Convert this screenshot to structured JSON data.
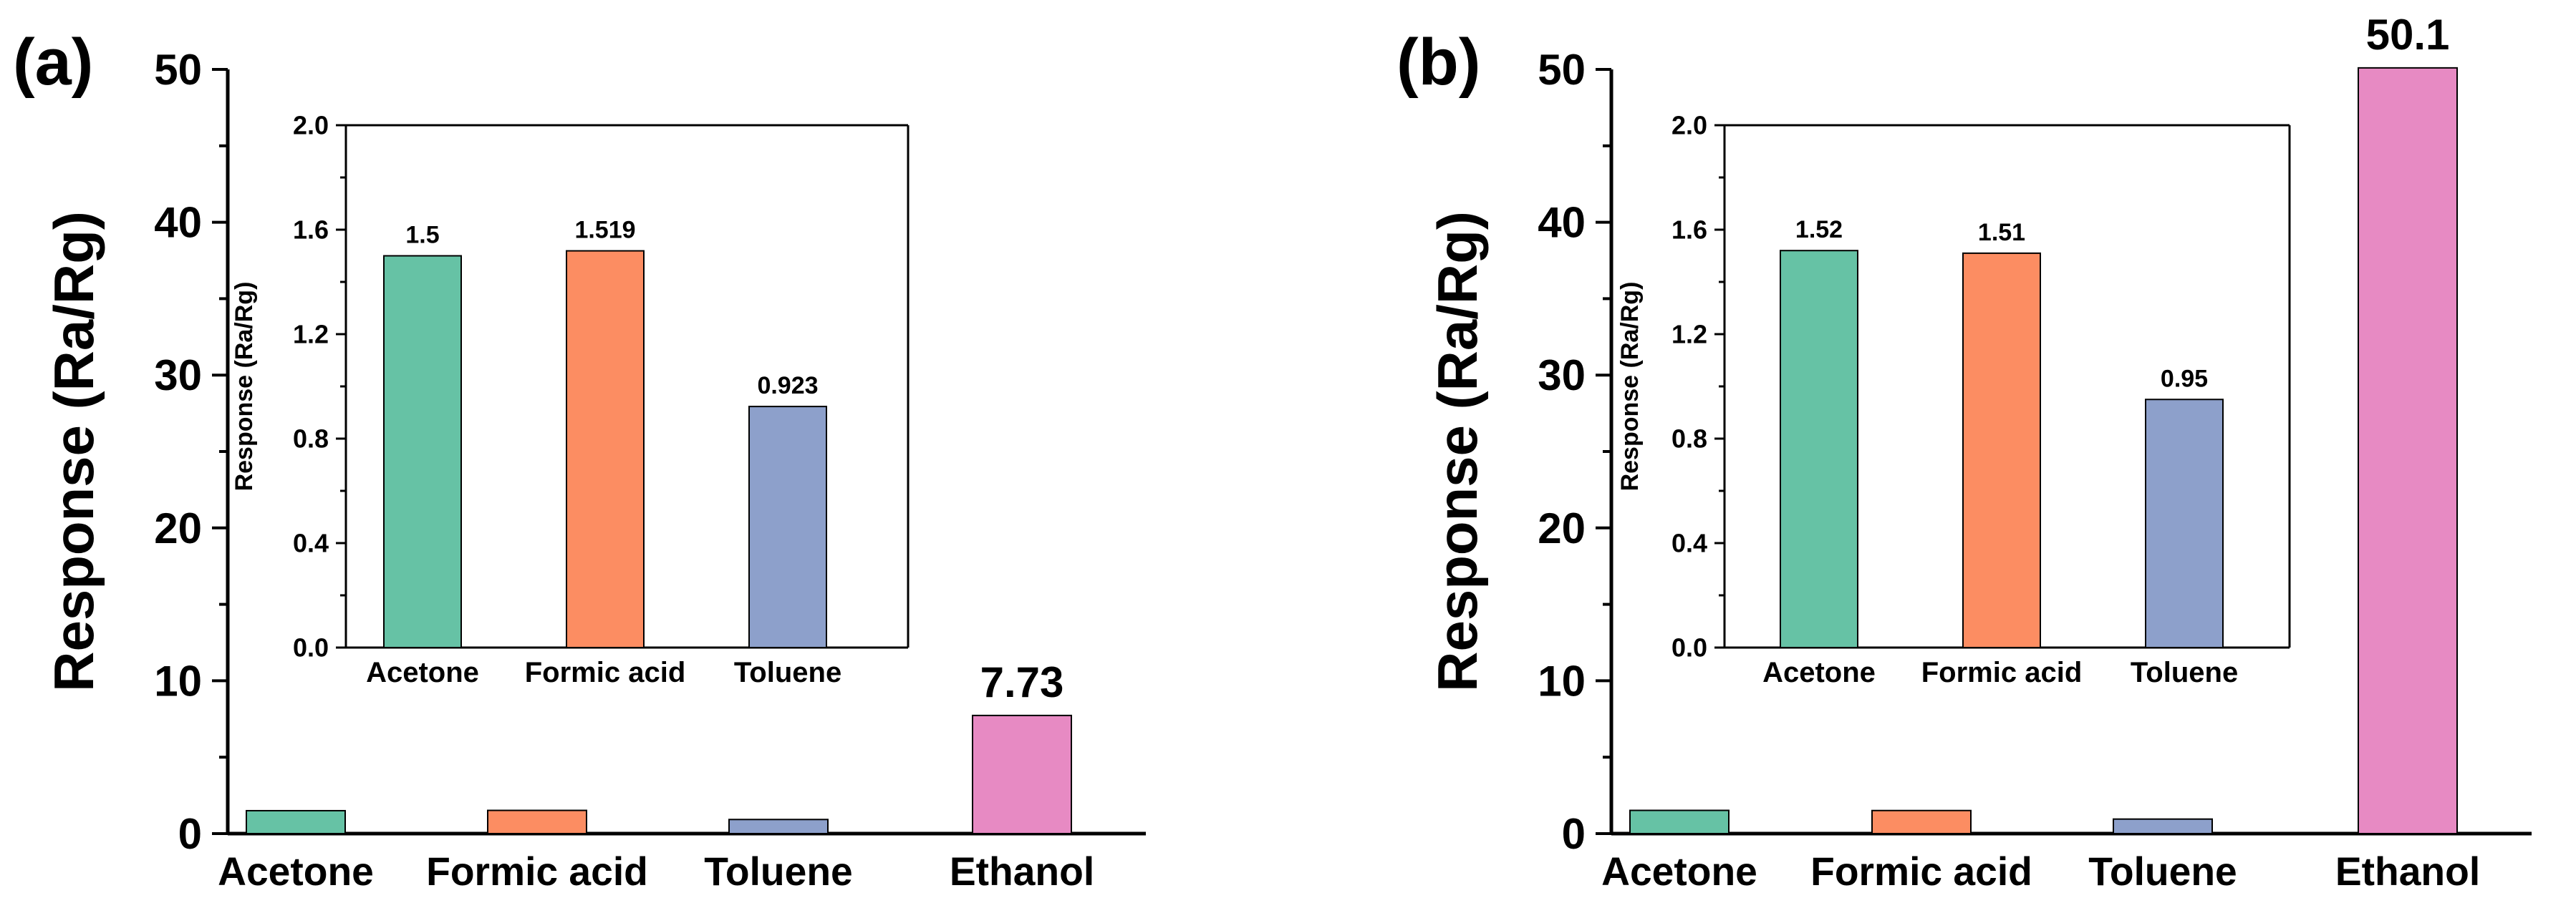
{
  "chart_data": [
    {
      "panel_label": "(a)",
      "type": "bar",
      "ylabel": "Response (Ra/Rg)",
      "ylim": [
        0,
        50
      ],
      "yticks": [
        "0",
        "10",
        "20",
        "30",
        "40",
        "50"
      ],
      "categories": [
        "Acetone",
        "Formic acid",
        "Toluene",
        "Ethanol"
      ],
      "values": [
        1.5,
        1.519,
        0.923,
        7.73
      ],
      "data_labels": [
        "",
        "",
        "",
        "7.73"
      ],
      "colors": [
        "#66c2a5",
        "#fc8d62",
        "#8da0cb",
        "#e78ac3"
      ],
      "inset": {
        "type": "bar",
        "ylabel": "Response (Ra/Rg)",
        "ylim": [
          0,
          2.0
        ],
        "yticks": [
          "0.0",
          "0.4",
          "0.8",
          "1.2",
          "1.6",
          "2.0"
        ],
        "categories": [
          "Acetone",
          "Formic acid",
          "Toluene"
        ],
        "values": [
          1.5,
          1.519,
          0.923
        ],
        "data_labels": [
          "1.5",
          "1.519",
          "0.923"
        ],
        "colors": [
          "#66c2a5",
          "#fc8d62",
          "#8da0cb"
        ]
      }
    },
    {
      "panel_label": "(b)",
      "type": "bar",
      "ylabel": "Response (Ra/Rg)",
      "ylim": [
        0,
        50
      ],
      "yticks": [
        "0",
        "10",
        "20",
        "30",
        "40",
        "50"
      ],
      "categories": [
        "Acetone",
        "Formic acid",
        "Toluene",
        "Ethanol"
      ],
      "values": [
        1.52,
        1.51,
        0.95,
        50.1
      ],
      "data_labels": [
        "",
        "",
        "",
        "50.1"
      ],
      "colors": [
        "#66c2a5",
        "#fc8d62",
        "#8da0cb",
        "#e78ac3"
      ],
      "inset": {
        "type": "bar",
        "ylabel": "Response (Ra/Rg)",
        "ylim": [
          0,
          2.0
        ],
        "yticks": [
          "0.0",
          "0.4",
          "0.8",
          "1.2",
          "1.6",
          "2.0"
        ],
        "categories": [
          "Acetone",
          "Formic acid",
          "Toluene"
        ],
        "values": [
          1.52,
          1.51,
          0.95
        ],
        "data_labels": [
          "1.52",
          "1.51",
          "0.95"
        ],
        "colors": [
          "#66c2a5",
          "#fc8d62",
          "#8da0cb"
        ]
      }
    }
  ]
}
